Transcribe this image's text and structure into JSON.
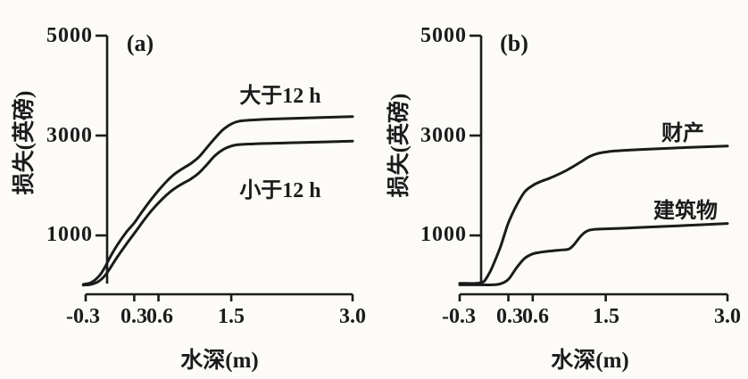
{
  "figure": {
    "background": "#fcfbf8",
    "ink": "#1b1b1b"
  },
  "chart_data": [
    {
      "type": "line",
      "panel_label": "(a)",
      "xlabel": "水深(m)",
      "ylabel": "损失(英磅)",
      "xlim": [
        -0.3,
        3.0
      ],
      "ylim": [
        0,
        5000
      ],
      "grid": false,
      "legend_position": "inline-annotations",
      "x_ticks": [
        -0.3,
        0.3,
        0.6,
        1.5,
        3.0
      ],
      "x_tick_labels": [
        "-0.3",
        "0.3",
        "0.6",
        "1.5",
        "3.0"
      ],
      "y_ticks": [
        1000,
        3000,
        5000
      ],
      "y_tick_labels": [
        "1000",
        "3000",
        "5000"
      ],
      "series": [
        {
          "key": "greater-than-12h",
          "name": "大于12 h",
          "x": [
            -0.33,
            -0.25,
            -0.2,
            -0.15,
            -0.1,
            -0.05,
            0,
            0.1,
            0.2,
            0.3,
            0.4,
            0.5,
            0.6,
            0.7,
            0.8,
            0.9,
            1.0,
            1.1,
            1.2,
            1.3,
            1.4,
            1.5,
            1.6,
            1.8,
            2.0,
            2.4,
            3.0
          ],
          "y": [
            20,
            45,
            90,
            160,
            260,
            400,
            560,
            830,
            1060,
            1250,
            1480,
            1700,
            1900,
            2080,
            2230,
            2340,
            2440,
            2570,
            2760,
            2950,
            3120,
            3230,
            3290,
            3315,
            3330,
            3350,
            3380
          ]
        },
        {
          "key": "less-than-12h",
          "name": "小于12 h",
          "x": [
            -0.33,
            -0.25,
            -0.2,
            -0.15,
            -0.1,
            -0.05,
            0,
            0.1,
            0.2,
            0.3,
            0.4,
            0.5,
            0.6,
            0.7,
            0.8,
            0.9,
            1.0,
            1.1,
            1.2,
            1.3,
            1.4,
            1.5,
            1.6,
            1.8,
            2.0,
            2.4,
            3.0
          ],
          "y": [
            5,
            15,
            35,
            70,
            130,
            220,
            340,
            590,
            820,
            1040,
            1260,
            1470,
            1650,
            1810,
            1940,
            2040,
            2130,
            2250,
            2420,
            2600,
            2720,
            2790,
            2820,
            2835,
            2845,
            2860,
            2890
          ]
        }
      ]
    },
    {
      "type": "line",
      "panel_label": "(b)",
      "xlabel": "水深(m)",
      "ylabel": "损失(英磅)",
      "xlim": [
        -0.3,
        3.0
      ],
      "ylim": [
        0,
        5000
      ],
      "grid": false,
      "legend_position": "inline-annotations",
      "x_ticks": [
        -0.3,
        0.3,
        0.6,
        1.5,
        3.0
      ],
      "x_tick_labels": [
        "-0.3",
        "0.3",
        "0.6",
        "1.5",
        "3.0"
      ],
      "y_ticks": [
        1000,
        3000,
        5000
      ],
      "y_tick_labels": [
        "1000",
        "3000",
        "5000"
      ],
      "series": [
        {
          "key": "property",
          "name": "财产",
          "x": [
            -0.3,
            -0.2,
            -0.1,
            -0.05,
            0,
            0.05,
            0.1,
            0.2,
            0.3,
            0.4,
            0.5,
            0.6,
            0.7,
            0.8,
            0.9,
            1.0,
            1.1,
            1.2,
            1.3,
            1.4,
            1.5,
            1.6,
            1.8,
            2.0,
            2.5,
            3.0
          ],
          "y": [
            40,
            40,
            40,
            50,
            80,
            200,
            360,
            760,
            1250,
            1600,
            1870,
            2000,
            2080,
            2140,
            2210,
            2290,
            2380,
            2480,
            2580,
            2640,
            2670,
            2690,
            2710,
            2725,
            2760,
            2790
          ]
        },
        {
          "key": "buildings",
          "name": "建筑物",
          "x": [
            -0.3,
            -0.1,
            0,
            0.1,
            0.2,
            0.3,
            0.4,
            0.5,
            0.6,
            0.7,
            0.8,
            0.9,
            1.0,
            1.05,
            1.1,
            1.15,
            1.2,
            1.25,
            1.3,
            1.35,
            1.4,
            1.5,
            1.8,
            2.0,
            2.5,
            3.0
          ],
          "y": [
            10,
            10,
            10,
            10,
            30,
            120,
            350,
            540,
            630,
            665,
            685,
            700,
            715,
            730,
            800,
            900,
            1000,
            1070,
            1105,
            1120,
            1125,
            1132,
            1150,
            1165,
            1200,
            1240
          ]
        }
      ]
    }
  ]
}
